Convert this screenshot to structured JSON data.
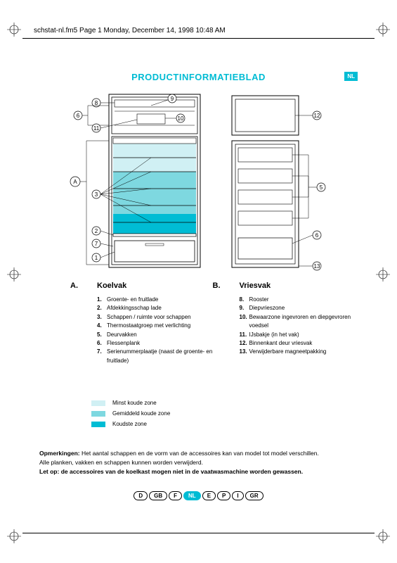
{
  "header": "schstat-nl.fm5  Page 1  Monday, December 14, 1998  10:48 AM",
  "title": "PRODUCTINFORMATIEBLAD",
  "badge": "NL",
  "colors": {
    "accent": "#00bcd4",
    "zone_light": "#d0f0f4",
    "zone_mid": "#7ed8e0",
    "zone_dark": "#00bcd4",
    "line": "#000000"
  },
  "diagram": {
    "callouts_left": [
      "8",
      "6",
      "11",
      "A",
      "3",
      "2",
      "7",
      "1"
    ],
    "callouts_top": [
      "9",
      "10"
    ],
    "callouts_right": [
      "12",
      "5",
      "6",
      "13"
    ]
  },
  "sectionA": {
    "letter": "A.",
    "title": "Koelvak",
    "items": [
      {
        "n": "1.",
        "t": "Groente- en fruitlade"
      },
      {
        "n": "2.",
        "t": "Afdekkingsschap lade"
      },
      {
        "n": "3.",
        "t": "Schappen / ruimte voor schappen"
      },
      {
        "n": "4.",
        "t": "Thermostaatgroep met verlichting"
      },
      {
        "n": "5.",
        "t": "Deurvakken"
      },
      {
        "n": "6.",
        "t": "Flessenplank"
      },
      {
        "n": "7.",
        "t": "Serienummerplaatje (naast de groente- en fruitlade)"
      }
    ]
  },
  "sectionB": {
    "letter": "B.",
    "title": "Vriesvak",
    "items": [
      {
        "n": "8.",
        "t": "Rooster"
      },
      {
        "n": "9.",
        "t": "Diepvrieszone"
      },
      {
        "n": "10.",
        "t": "Bewaarzone ingevroren en diepgevroren voedsel"
      },
      {
        "n": "11.",
        "t": "IJsbakje (in het vak)"
      },
      {
        "n": "12.",
        "t": "Binnenkant deur vriesvak"
      },
      {
        "n": "13.",
        "t": "Verwijderbare magneetpakking"
      }
    ]
  },
  "legend": [
    {
      "color": "#d0f0f4",
      "label": "Minst koude zone"
    },
    {
      "color": "#7ed8e0",
      "label": "Gemiddeld koude zone"
    },
    {
      "color": "#00bcd4",
      "label": "Koudste zone"
    }
  ],
  "notes": {
    "label": "Opmerkingen:",
    "line1": " Het aantal schappen en de vorm van de accessoires kan van model tot model verschillen.",
    "line2": "Alle planken, vakken en schappen kunnen worden verwijderd.",
    "line3": "Let op: de accessoires van de koelkast mogen niet in de vaatwasmachine worden gewassen."
  },
  "languages": [
    "D",
    "GB",
    "F",
    "NL",
    "E",
    "P",
    "I",
    "GR"
  ],
  "active_lang": "NL"
}
